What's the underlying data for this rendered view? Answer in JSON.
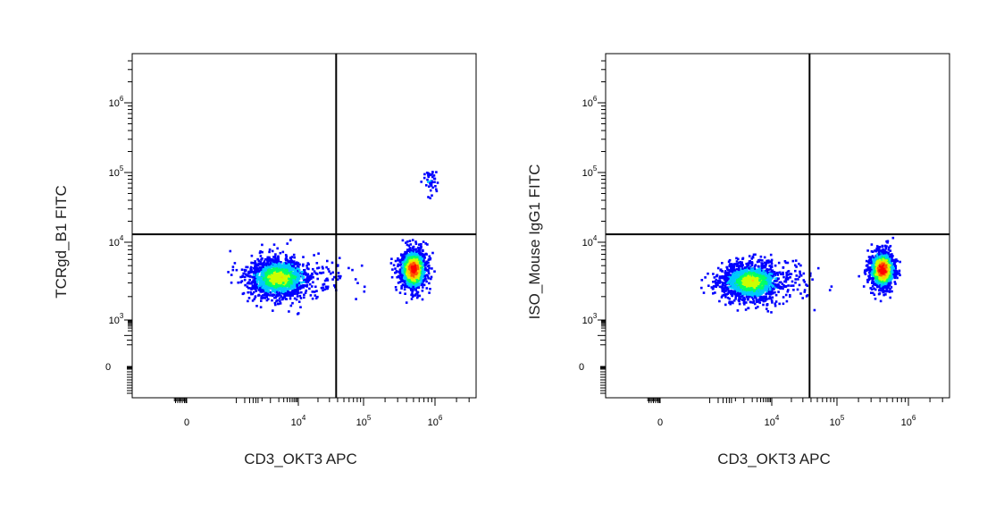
{
  "chart_data": [
    {
      "type": "scatter",
      "title": "",
      "xlabel": "CD3_OKT3 APC",
      "ylabel": "TCRgd_B1 FITC",
      "x_scale": "biexponential",
      "y_scale": "biexponential",
      "x_ticks": [
        {
          "value": 0,
          "base": "0",
          "exp": ""
        },
        {
          "value": 10000,
          "base": "10",
          "exp": "4"
        },
        {
          "value": 100000,
          "base": "10",
          "exp": "5"
        },
        {
          "value": 1000000,
          "base": "10",
          "exp": "6"
        }
      ],
      "y_ticks": [
        {
          "value": 0,
          "base": "0",
          "exp": ""
        },
        {
          "value": 1000,
          "base": "10",
          "exp": "3"
        },
        {
          "value": 10000,
          "base": "10",
          "exp": "4"
        },
        {
          "value": 100000,
          "base": "10",
          "exp": "5"
        },
        {
          "value": 1000000,
          "base": "10",
          "exp": "6"
        }
      ],
      "quadrant_gate": {
        "x": 38000,
        "y": 13000
      },
      "populations": [
        {
          "x_center": 1800,
          "y_center": 3600,
          "x_log_spread": 0.55,
          "y_log_spread": 0.13,
          "count": 1700,
          "peak_density": 0.55
        },
        {
          "x_center": 480000,
          "y_center": 4600,
          "x_log_spread": 0.09,
          "y_log_spread": 0.13,
          "count": 1300,
          "peak_density": 1.0
        },
        {
          "x_center": 800000,
          "y_center": 80000,
          "x_log_spread": 0.06,
          "y_log_spread": 0.12,
          "count": 40,
          "peak_density": 0.15
        }
      ]
    },
    {
      "type": "scatter",
      "title": "",
      "xlabel": "CD3_OKT3 APC",
      "ylabel": "ISO_Mouse IgG1 FITC",
      "x_scale": "biexponential",
      "y_scale": "biexponential",
      "x_ticks": [
        {
          "value": 0,
          "base": "0",
          "exp": ""
        },
        {
          "value": 10000,
          "base": "10",
          "exp": "4"
        },
        {
          "value": 100000,
          "base": "10",
          "exp": "5"
        },
        {
          "value": 1000000,
          "base": "10",
          "exp": "6"
        }
      ],
      "y_ticks": [
        {
          "value": 0,
          "base": "0",
          "exp": ""
        },
        {
          "value": 1000,
          "base": "10",
          "exp": "3"
        },
        {
          "value": 10000,
          "base": "10",
          "exp": "4"
        },
        {
          "value": 100000,
          "base": "10",
          "exp": "5"
        },
        {
          "value": 1000000,
          "base": "10",
          "exp": "6"
        }
      ],
      "quadrant_gate": {
        "x": 38000,
        "y": 13000
      },
      "populations": [
        {
          "x_center": 1700,
          "y_center": 3200,
          "x_log_spread": 0.55,
          "y_log_spread": 0.12,
          "count": 1700,
          "peak_density": 0.55
        },
        {
          "x_center": 420000,
          "y_center": 4600,
          "x_log_spread": 0.09,
          "y_log_spread": 0.12,
          "count": 1200,
          "peak_density": 1.0
        }
      ]
    }
  ],
  "density_colors": [
    "#0000ff",
    "#00c8ff",
    "#00ff66",
    "#ccff00",
    "#ffcc00",
    "#ff5500",
    "#ff0000"
  ]
}
